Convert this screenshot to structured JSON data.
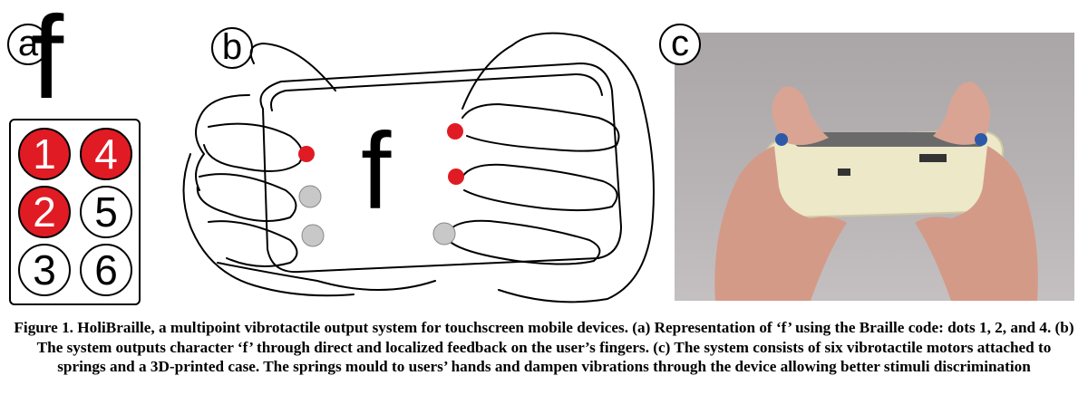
{
  "panels": {
    "a": {
      "label": "a",
      "letter": "f",
      "dots": [
        {
          "number": "1",
          "active": true
        },
        {
          "number": "4",
          "active": true
        },
        {
          "number": "2",
          "active": true
        },
        {
          "number": "5",
          "active": false
        },
        {
          "number": "3",
          "active": false
        },
        {
          "number": "6",
          "active": false
        }
      ]
    },
    "b": {
      "label": "b",
      "letter": "f"
    },
    "c": {
      "label": "c"
    }
  },
  "colors": {
    "active_dot": "#e01b24",
    "inactive_motor": "#c8c8c8"
  },
  "caption": {
    "text": "Figure 1. HoliBraille, a multipoint vibrotactile output system for touchscreen mobile devices. (a) Representation of ‘f’ using the Braille code: dots 1, 2, and 4. (b) The system outputs character ‘f’ through direct and localized feedback on the user’s fingers. (c) The system consists of six vibrotactile motors attached to springs and a 3D-printed case. The springs mould to users’ hands and dampen vibrations through the device allowing better stimuli discrimination"
  }
}
